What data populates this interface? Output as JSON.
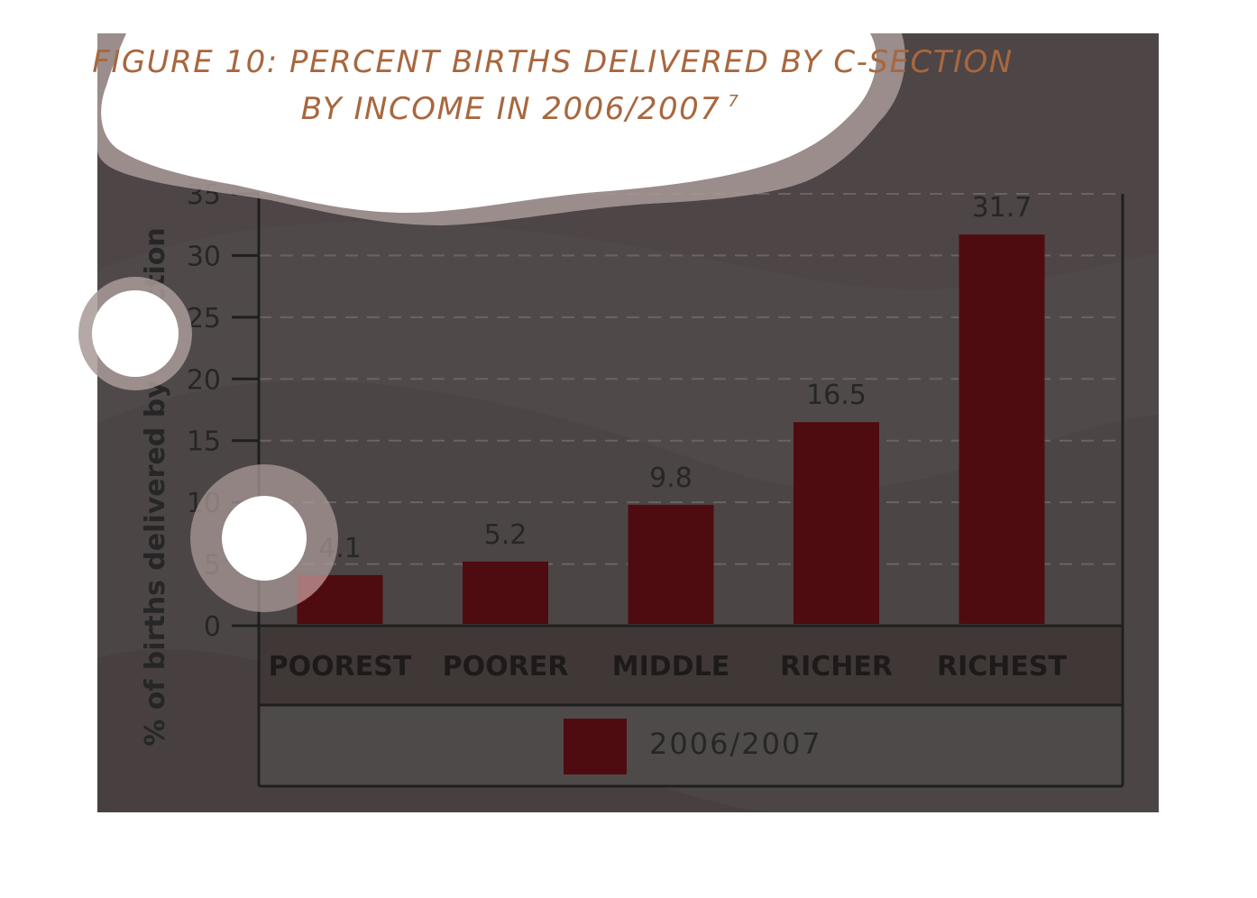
{
  "chart_data": {
    "type": "bar",
    "title_line1": "FIGURE 10: PERCENT BIRTHS DELIVERED BY C-SECTION",
    "title_line2": "BY INCOME IN 2006/2007",
    "title_superscript": "7",
    "ylabel": "% of births delivered by C–section",
    "xlabel": "",
    "categories": [
      "POOREST",
      "POORER",
      "MIDDLE",
      "RICHER",
      "RICHEST"
    ],
    "series": [
      {
        "name": "2006/2007",
        "values": [
          4.1,
          5.2,
          9.8,
          16.5,
          31.7
        ]
      }
    ],
    "data_labels": [
      "4.1",
      "5.2",
      "9.8",
      "16.5",
      "31.7"
    ],
    "ylim": [
      0,
      35
    ],
    "yticks": [
      0,
      5,
      10,
      15,
      20,
      25,
      30,
      35
    ],
    "grid": true,
    "grid_style": "dashed-horizontal",
    "legend": "bottom-center",
    "colors": {
      "bar": "#4f0c10",
      "background": "#4d4546",
      "category_band": "#3f3836",
      "axis": "#222222",
      "title": "#a8673e",
      "tick_text": "#262626",
      "cloud": "#ffffff",
      "cloud_halo": "#a89a98"
    }
  }
}
